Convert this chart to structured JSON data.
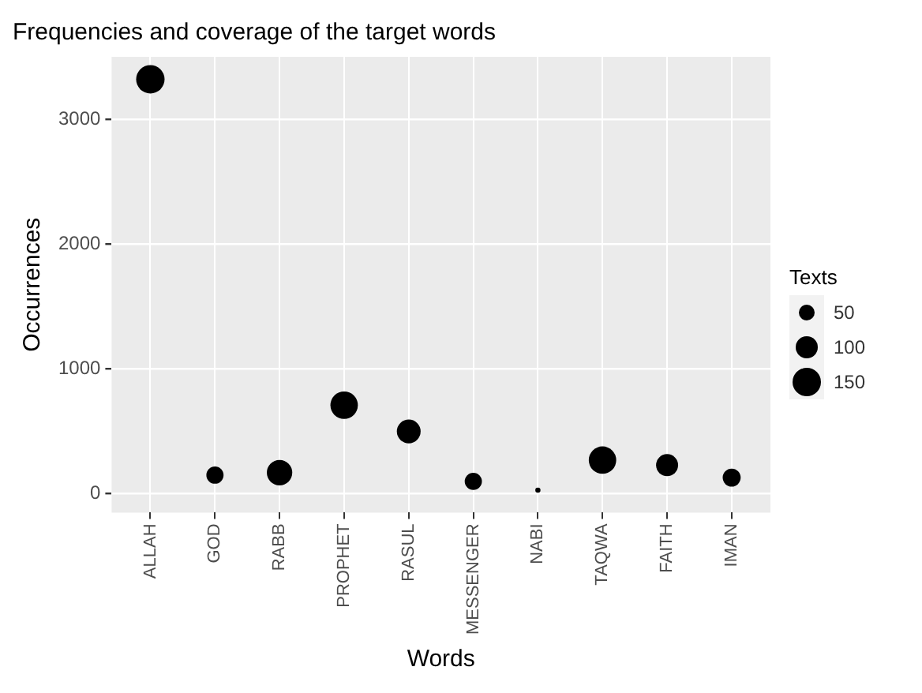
{
  "chart_data": {
    "type": "bubble",
    "title": "Frequencies and coverage of the target words",
    "xlabel": "Words",
    "ylabel": "Occurrences",
    "legend_title": "Texts",
    "categories": [
      "ALLAH",
      "GOD",
      "RABB",
      "PROPHET",
      "RASUL",
      "MESSENGER",
      "NABI",
      "TAQWA",
      "FAITH",
      "IMAN"
    ],
    "values": [
      3320,
      150,
      170,
      710,
      500,
      100,
      30,
      270,
      230,
      130
    ],
    "sizes": [
      150,
      55,
      120,
      140,
      105,
      55,
      5,
      140,
      90,
      60
    ],
    "size_legend": [
      50,
      100,
      150
    ],
    "color": "#000000",
    "ylim": [
      -150,
      3500
    ],
    "yticks": [
      0,
      1000,
      2000,
      3000
    ],
    "grid": true
  }
}
